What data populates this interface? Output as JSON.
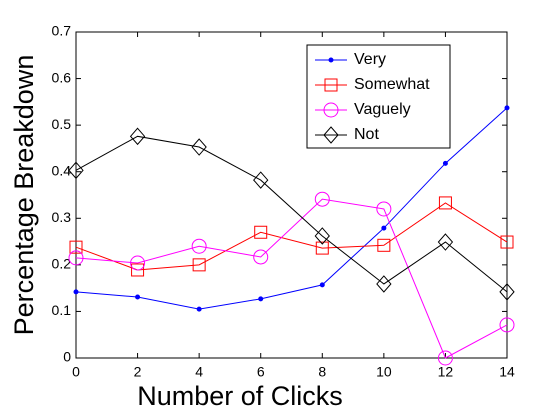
{
  "chart_data": {
    "type": "line",
    "x_label": "Number of Clicks",
    "y_label": "Percentage Breakdown",
    "x": [
      0,
      2,
      4,
      6,
      8,
      10,
      12,
      14
    ],
    "series": [
      {
        "name": "Very",
        "color": "#0000ff",
        "marker": "dot",
        "values": [
          0.142,
          0.131,
          0.105,
          0.127,
          0.157,
          0.279,
          0.418,
          0.537
        ]
      },
      {
        "name": "Somewhat",
        "color": "#ff0000",
        "marker": "square",
        "values": [
          0.238,
          0.189,
          0.2,
          0.27,
          0.236,
          0.242,
          0.333,
          0.249
        ]
      },
      {
        "name": "Vaguely",
        "color": "#ff00ff",
        "marker": "circle",
        "values": [
          0.215,
          0.204,
          0.24,
          0.217,
          0.341,
          0.32,
          0,
          0.071
        ]
      },
      {
        "name": "Not",
        "color": "#000000",
        "marker": "diamond",
        "values": [
          0.403,
          0.476,
          0.453,
          0.382,
          0.262,
          0.159,
          0.249,
          0.142
        ]
      }
    ],
    "xlim": [
      0,
      14
    ],
    "xticks": [
      0,
      2,
      4,
      6,
      8,
      10,
      12,
      14
    ],
    "ylim": [
      0,
      0.7
    ],
    "yticks": [
      0,
      0.1,
      0.2,
      0.3,
      0.4,
      0.5,
      0.6,
      0.7
    ],
    "legend": "top-right"
  }
}
